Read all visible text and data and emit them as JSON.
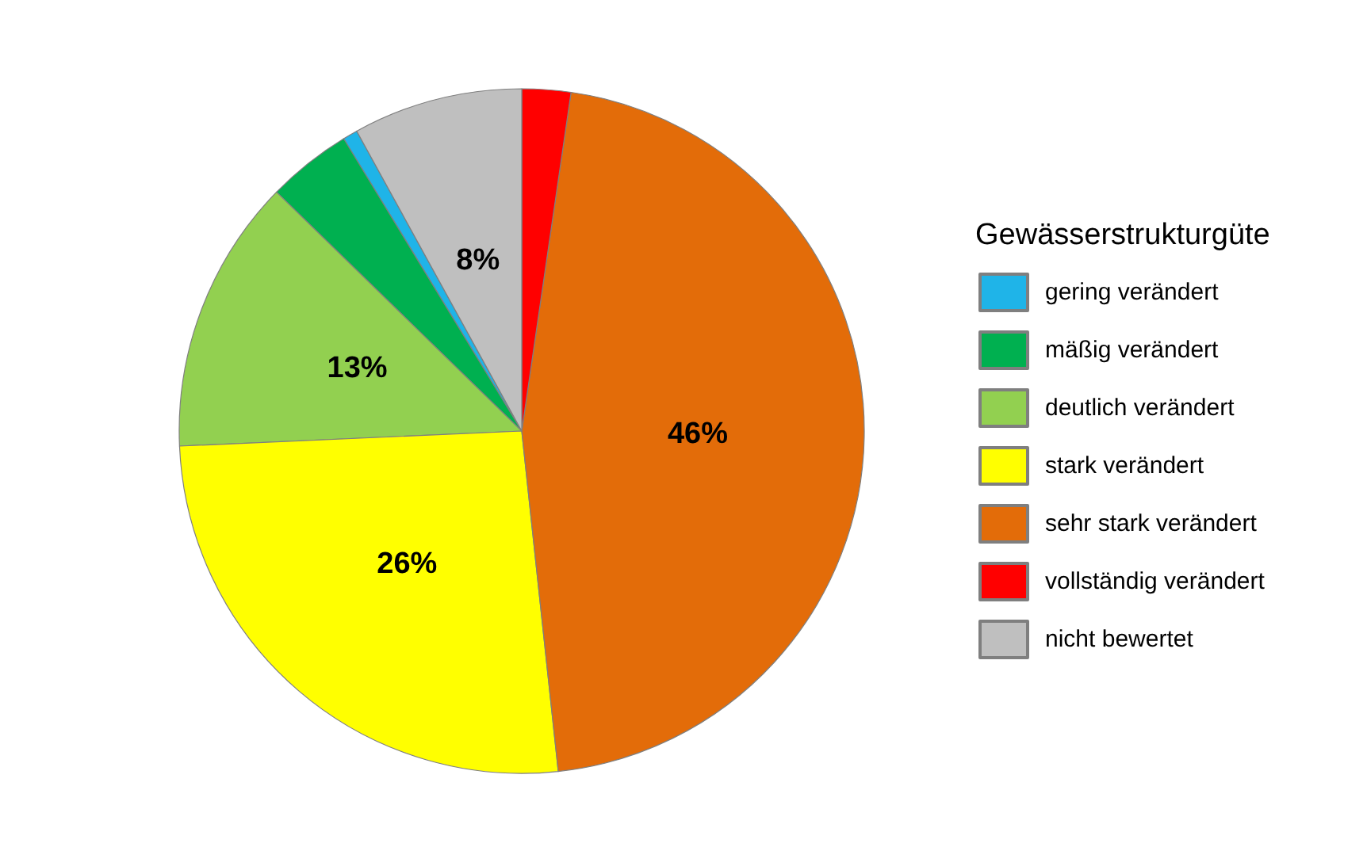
{
  "chart_data": {
    "type": "pie",
    "legend_title": "Gewässerstrukturgüte",
    "legend": "right",
    "categories": [
      "gering verändert",
      "mäßig verändert",
      "deutlich verändert",
      "stark verändert",
      "sehr stark verändert",
      "vollständig verändert",
      "nicht bewertet"
    ],
    "values": [
      0.7,
      4,
      13,
      26,
      46,
      2.3,
      8
    ],
    "value_labels": [
      null,
      null,
      "13%",
      "26%",
      "46%",
      null,
      "8%"
    ],
    "colors": [
      "#1fb4e8",
      "#00b050",
      "#92d050",
      "#ffff00",
      "#e36c09",
      "#ff0000",
      "#bfbfbf"
    ]
  }
}
